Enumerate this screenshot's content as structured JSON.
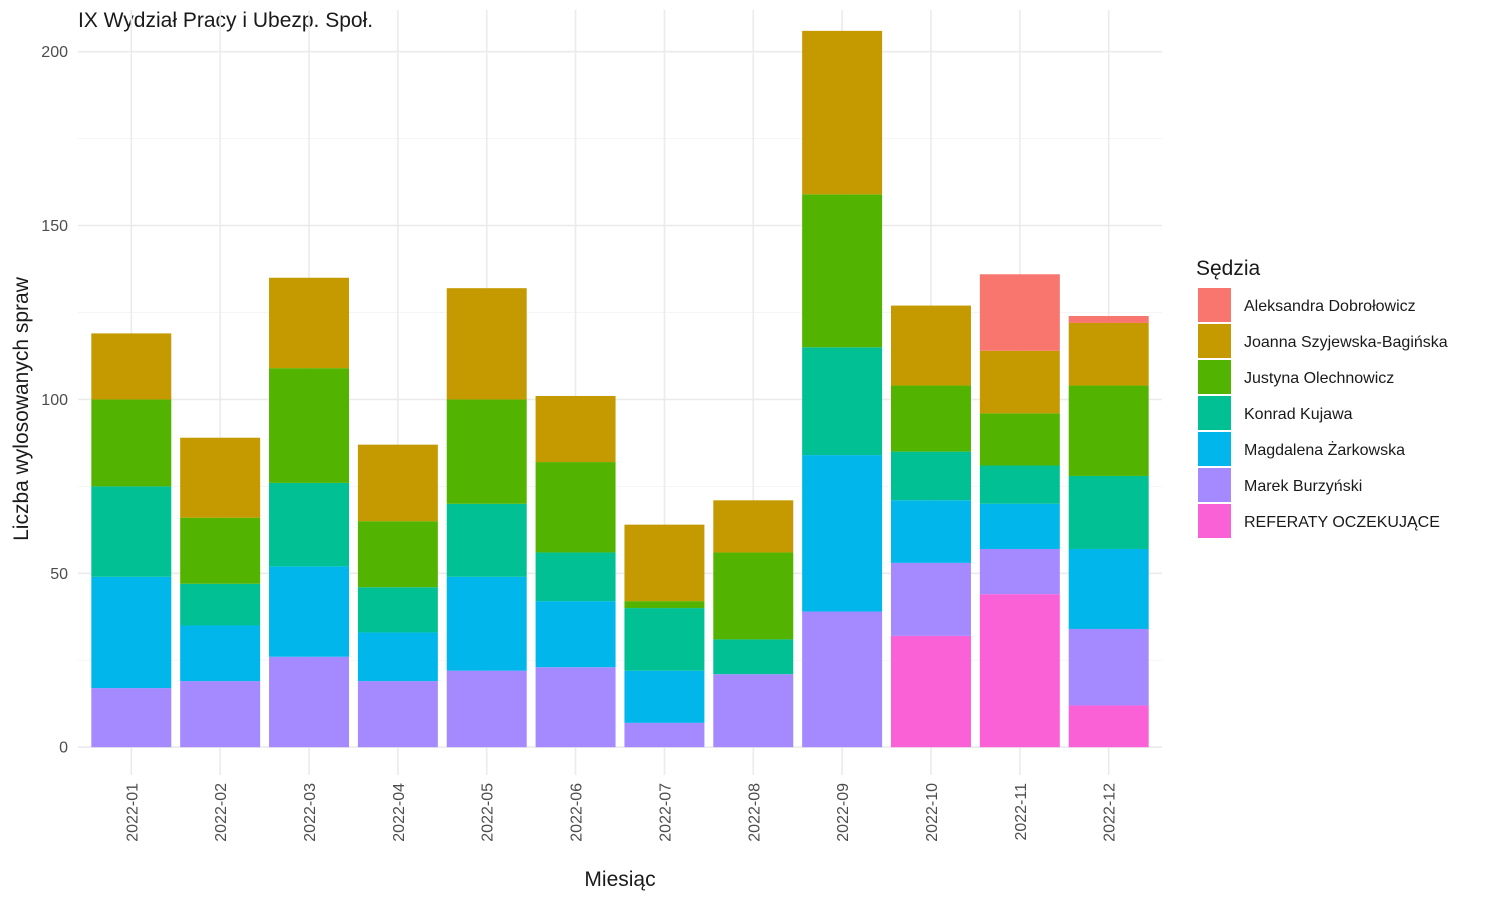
{
  "chart_data": {
    "type": "bar",
    "stacked": true,
    "title": "IX Wydział Pracy i Ubezp. Społ.",
    "xlabel": "Miesiąc",
    "ylabel": "Liczba wylosowanych spraw",
    "ylim": [
      -8,
      212
    ],
    "yticks": [
      0,
      50,
      100,
      150,
      200
    ],
    "grid": true,
    "legend_title": "Sędzia",
    "legend_position": "right",
    "categories": [
      "2022-01",
      "2022-02",
      "2022-03",
      "2022-04",
      "2022-05",
      "2022-06",
      "2022-07",
      "2022-08",
      "2022-09",
      "2022-10",
      "2022-11",
      "2022-12"
    ],
    "series": [
      {
        "name": "Aleksandra Dobrołowicz",
        "color": "#F8766D",
        "values": [
          0,
          0,
          0,
          0,
          0,
          0,
          0,
          0,
          0,
          0,
          22,
          2
        ]
      },
      {
        "name": "Joanna Szyjewska-Bagińska",
        "color": "#C49A00",
        "values": [
          19,
          23,
          26,
          22,
          32,
          19,
          22,
          15,
          47,
          23,
          18,
          18
        ]
      },
      {
        "name": "Justyna Olechnowicz",
        "color": "#53B400",
        "values": [
          25,
          19,
          33,
          19,
          30,
          26,
          2,
          25,
          44,
          19,
          15,
          26
        ]
      },
      {
        "name": "Konrad Kujawa",
        "color": "#00C094",
        "values": [
          26,
          12,
          24,
          13,
          21,
          14,
          18,
          10,
          31,
          14,
          11,
          21
        ]
      },
      {
        "name": "Magdalena Żarkowska",
        "color": "#00B6EB",
        "values": [
          32,
          16,
          26,
          14,
          27,
          19,
          15,
          0,
          45,
          18,
          13,
          23
        ]
      },
      {
        "name": "Marek Burzyński",
        "color": "#A58AFF",
        "values": [
          17,
          19,
          26,
          19,
          22,
          23,
          7,
          21,
          39,
          21,
          13,
          22
        ]
      },
      {
        "name": "REFERATY OCZEKUJĄCE",
        "color": "#FB61D7",
        "values": [
          0,
          0,
          0,
          0,
          0,
          0,
          0,
          0,
          0,
          32,
          44,
          12
        ]
      }
    ]
  }
}
